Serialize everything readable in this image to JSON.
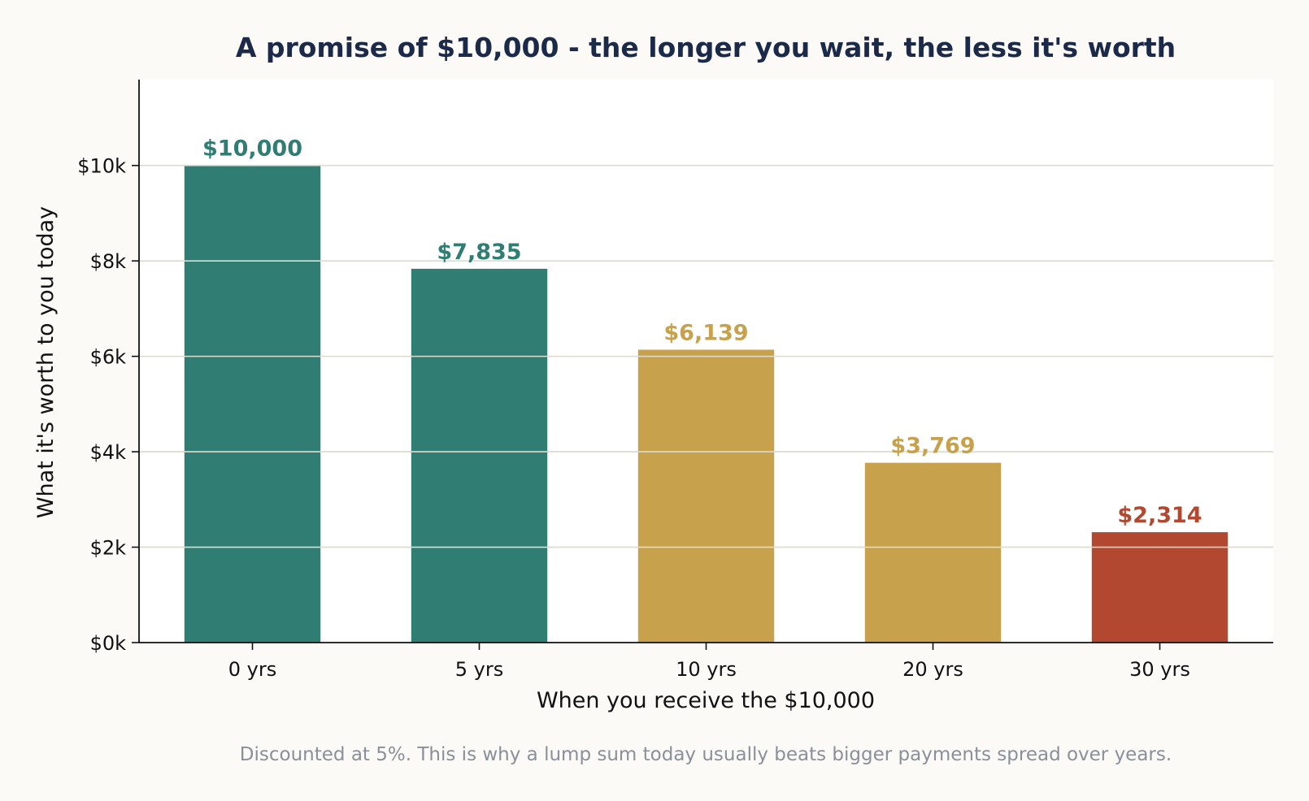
{
  "chart_data": {
    "type": "bar",
    "title": "A promise of $10,000 - the longer you wait, the less it's worth",
    "xlabel": "When you receive the $10,000",
    "ylabel": "What it's worth to you today",
    "categories": [
      "0 yrs",
      "5 yrs",
      "10 yrs",
      "20 yrs",
      "30 yrs"
    ],
    "values": [
      10000,
      7835,
      6139,
      3769,
      2314
    ],
    "value_labels": [
      "$10,000",
      "$7,835",
      "$6,139",
      "$3,769",
      "$2,314"
    ],
    "bar_colors": [
      "#2f7d73",
      "#2f7d73",
      "#c7a14b",
      "#c7a14b",
      "#b34831"
    ],
    "ylim": [
      0,
      11800
    ],
    "yticks": [
      0,
      2000,
      4000,
      6000,
      8000,
      10000
    ],
    "ytick_labels": [
      "$0k",
      "$2k",
      "$4k",
      "$6k",
      "$8k",
      "$10k"
    ],
    "grid": true,
    "footnote": "Discounted at 5%. This is why a lump sum today usually beats bigger payments spread over years."
  },
  "colors": {
    "title": "#1c2a4a",
    "footnote": "#8a8f99",
    "grid": "#deddd0",
    "plot_background": "#ffffff",
    "page_background": "#fbfaf7"
  }
}
